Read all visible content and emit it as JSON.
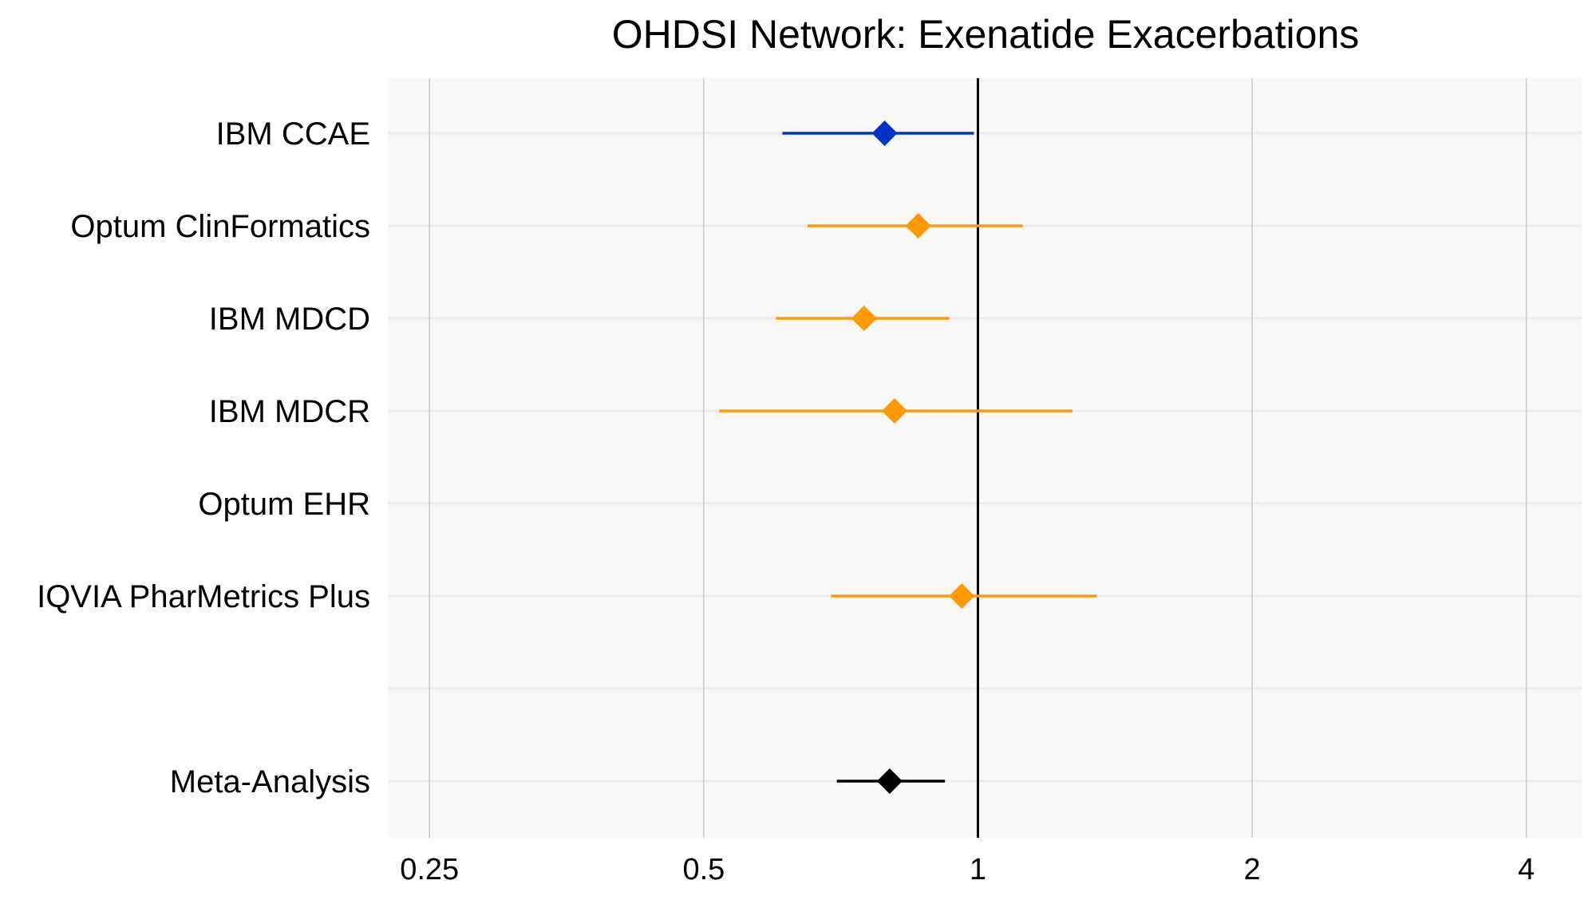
{
  "chart_data": {
    "type": "forest",
    "title": "OHDSI Network: Exenatide Exacerbations",
    "xlabel": "",
    "ylabel": "",
    "x_scale": "log2",
    "xlim": [
      0.225,
      4.6
    ],
    "x_ticks": [
      0.25,
      0.5,
      1,
      2,
      4
    ],
    "x_tick_labels": [
      "0.25",
      "0.5",
      "1",
      "2",
      "4"
    ],
    "reference_line": 1,
    "grid": true,
    "rows": [
      {
        "label": "IBM CCAE",
        "estimate": 0.79,
        "lower": 0.61,
        "upper": 0.99,
        "color": "#0033cc"
      },
      {
        "label": "Optum ClinFormatics",
        "estimate": 0.86,
        "lower": 0.65,
        "upper": 1.12,
        "color": "#ff9900"
      },
      {
        "label": "IBM MDCD",
        "estimate": 0.75,
        "lower": 0.6,
        "upper": 0.93,
        "color": "#ff9900"
      },
      {
        "label": "IBM MDCR",
        "estimate": 0.81,
        "lower": 0.52,
        "upper": 1.27,
        "color": "#ff9900"
      },
      {
        "label": "Optum EHR",
        "estimate": null,
        "lower": null,
        "upper": null,
        "color": "#ff9900"
      },
      {
        "label": "IQVIA PharMetrics Plus",
        "estimate": 0.96,
        "lower": 0.69,
        "upper": 1.35,
        "color": "#ff9900"
      },
      {
        "label": "",
        "estimate": null,
        "lower": null,
        "upper": null,
        "color": ""
      },
      {
        "label": "Meta-Analysis",
        "estimate": 0.8,
        "lower": 0.7,
        "upper": 0.92,
        "color": "#000000"
      }
    ],
    "colors": {
      "panel_background": "#f8f8f8",
      "horizontal_grid": "#ebebeb",
      "vertical_grid": "#c8c8c8",
      "reference_line": "#000000"
    }
  }
}
